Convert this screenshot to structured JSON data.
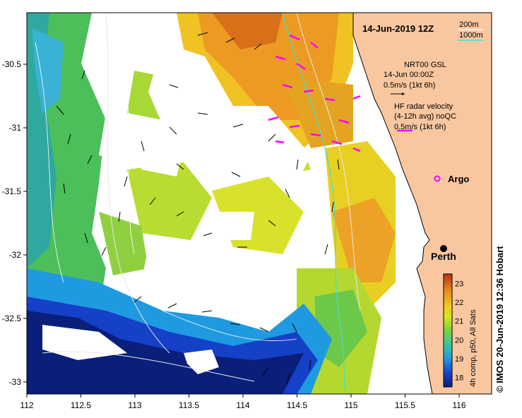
{
  "map": {
    "title": "14-Jun-2019 12Z",
    "bathy_legend": [
      "200m",
      "1000m"
    ],
    "nrt_text": [
      "NRT00 GSL",
      "14-Jun 00:00Z",
      "0.5m/s (1kt 6h)"
    ],
    "hf_text": [
      "HF radar velocity",
      "(4-12h avg) noQC",
      "0.5m/s (1kt 6h)"
    ],
    "argo_label": "Argo",
    "city_label": "Perth",
    "colorbar_label": "4h comp, p50, All Sats",
    "colorbar_ticks": [
      "18",
      "19",
      "20",
      "21",
      "22",
      "23"
    ],
    "colorbar_range": [
      17.5,
      23.5
    ],
    "lon_ticks": [
      "112",
      "112.5",
      "113",
      "113.5",
      "114",
      "114.5",
      "115",
      "115.5",
      "116"
    ],
    "lat_ticks": [
      "-30.5",
      "-31",
      "-31.5",
      "-32",
      "-32.5",
      "-33"
    ],
    "credit": "© IMOS 20-Jun-2019 12:36 Hobart",
    "colors": {
      "land": "#f8c7a0",
      "sst_cold": "#0a1f7a",
      "sst_warm": "#c83c10",
      "hf_arrow": "#ff00ff",
      "argo": "#ff00ff",
      "bathy_200": "#e8e8e8",
      "bathy_1000": "#40e0d0"
    }
  }
}
